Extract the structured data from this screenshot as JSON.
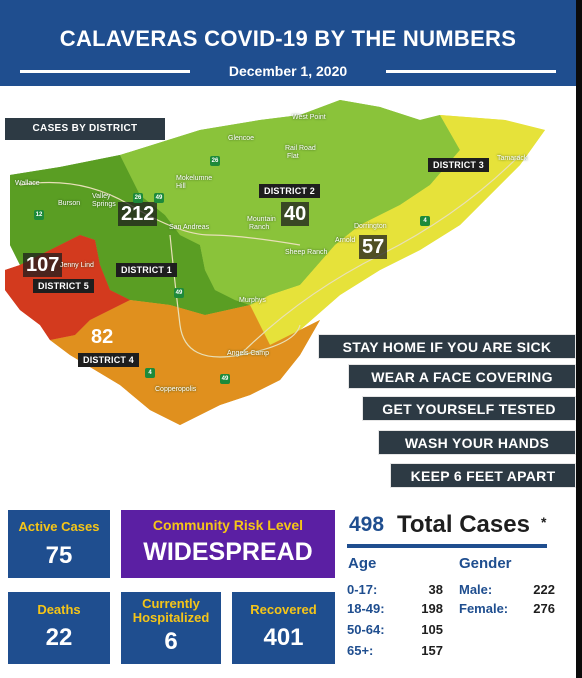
{
  "header": {
    "title": "CALAVERAS COVID-19 BY THE NUMBERS",
    "date": "December 1, 2020"
  },
  "map": {
    "legend_label": "CASES BY DISTRICT",
    "districts": [
      {
        "label": "DISTRICT 1",
        "cases": "212",
        "color": "#5a9e23"
      },
      {
        "label": "DISTRICT 2",
        "cases": "40",
        "color": "#8ac33a"
      },
      {
        "label": "DISTRICT 3",
        "cases": "57",
        "color": "#e6e23a"
      },
      {
        "label": "DISTRICT 4",
        "cases": "82",
        "color": "#e0901e"
      },
      {
        "label": "DISTRICT 5",
        "cases": "107",
        "color": "#d33a1e"
      }
    ],
    "places": {
      "west_point": "West Point",
      "glencoe": "Glencoe",
      "rail_road_flat": "Rail Road",
      "rail_road_flat2": "Flat",
      "mokelumne_hill": "Mokelumne",
      "mokelumne_hill2": "Hill",
      "tamarack": "Tamarack",
      "wallace": "Wallace",
      "burson": "Burson",
      "valley_springs": "Valley",
      "valley_springs2": "Springs",
      "san_andreas": "San Andreas",
      "mountain_ranch": "Mountain",
      "mountain_ranch2": "Ranch",
      "sheep_ranch": "Sheep Ranch",
      "dorrington": "Dorrington",
      "arnold": "Arnold",
      "jenny_lind": "Jenny Lind",
      "murphys": "Murphys",
      "angels_camp": "Angels Camp",
      "copperopolis": "Copperopolis"
    },
    "highways": [
      "12",
      "26",
      "49",
      "4"
    ]
  },
  "tips": [
    "STAY HOME IF YOU ARE SICK",
    "WEAR A FACE COVERING",
    "GET YOURSELF TESTED",
    "WASH YOUR HANDS",
    "KEEP 6 FEET APART"
  ],
  "stats": {
    "active": {
      "label": "Active Cases",
      "value": "75"
    },
    "risk": {
      "label": "Community Risk Level",
      "value": "WIDESPREAD"
    },
    "deaths": {
      "label": "Deaths",
      "value": "22"
    },
    "hospitalized": {
      "label1": "Currently",
      "label2": "Hospitalized",
      "value": "6"
    },
    "recovered": {
      "label": "Recovered",
      "value": "401"
    }
  },
  "totals": {
    "count": "498",
    "label": "Total Cases",
    "asterisk": "*",
    "age_header": "Age",
    "gender_header": "Gender",
    "age": [
      {
        "range": "0-17:",
        "value": "38"
      },
      {
        "range": "18-49:",
        "value": "198"
      },
      {
        "range": "50-64:",
        "value": "105"
      },
      {
        "range": "65+:",
        "value": "157"
      }
    ],
    "gender": [
      {
        "label": "Male:",
        "value": "222"
      },
      {
        "label": "Female:",
        "value": "276"
      }
    ]
  },
  "colors": {
    "brand_blue": "#1f4e8f",
    "accent_yellow": "#f5c518",
    "risk_purple": "#5b1fa3",
    "tip_gray": "#2d3a44"
  }
}
